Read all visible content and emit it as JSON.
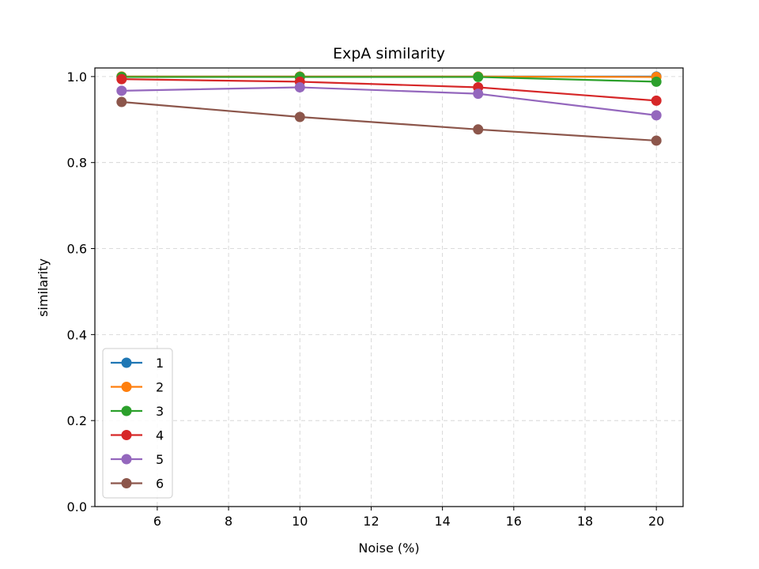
{
  "chart_data": {
    "type": "line",
    "title": "ExpA similarity",
    "xlabel": "Noise (%)",
    "ylabel": "similarity",
    "x": [
      5,
      10,
      15,
      20
    ],
    "xlim": [
      4.25,
      20.75
    ],
    "ylim": [
      0.0,
      1.02
    ],
    "xticks": [
      6,
      8,
      10,
      12,
      14,
      16,
      18,
      20
    ],
    "yticks": [
      0.0,
      0.2,
      0.4,
      0.6,
      0.8,
      1.0
    ],
    "xtick_labels": [
      "6",
      "8",
      "10",
      "12",
      "14",
      "16",
      "18",
      "20"
    ],
    "ytick_labels": [
      "0.0",
      "0.2",
      "0.4",
      "0.6",
      "0.8",
      "1.0"
    ],
    "grid": true,
    "legend_position": "lower-left",
    "series": [
      {
        "name": "1",
        "color": "#1f77b4",
        "values": [
          1.0,
          1.0,
          1.0,
          1.0
        ]
      },
      {
        "name": "2",
        "color": "#ff7f0e",
        "values": [
          1.0,
          1.0,
          1.0,
          0.999
        ]
      },
      {
        "name": "3",
        "color": "#2ca02c",
        "values": [
          0.999,
          0.999,
          0.999,
          0.988
        ]
      },
      {
        "name": "4",
        "color": "#d62728",
        "values": [
          0.994,
          0.988,
          0.975,
          0.944
        ]
      },
      {
        "name": "5",
        "color": "#9467bd",
        "values": [
          0.967,
          0.975,
          0.96,
          0.91
        ]
      },
      {
        "name": "6",
        "color": "#8c564b",
        "values": [
          0.941,
          0.906,
          0.877,
          0.851
        ]
      }
    ]
  }
}
